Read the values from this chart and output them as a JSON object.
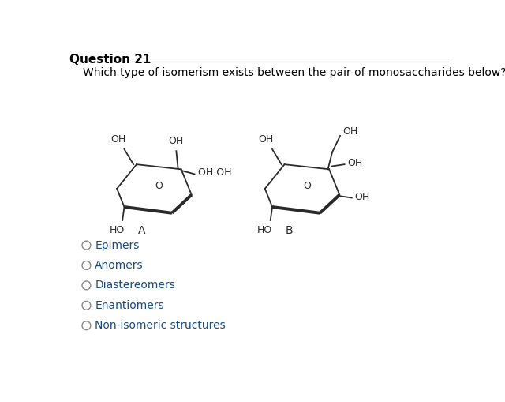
{
  "title": "Question 21",
  "question_text": "Which type of isomerism exists between the pair of monosaccharides below?",
  "options": [
    "Epimers",
    "Anomers",
    "Diastereomers",
    "Enantiomers",
    "Non-isomeric structures"
  ],
  "label_A": "A",
  "label_B": "B",
  "bg_color": "#ffffff",
  "text_color": "#000000",
  "option_text_color": "#1a4a7a",
  "line_color": "#2a2a2a",
  "title_color": "#000000",
  "font_size_title": 11,
  "font_size_question": 10,
  "font_size_options": 10,
  "font_size_chem": 9,
  "font_size_label": 10
}
